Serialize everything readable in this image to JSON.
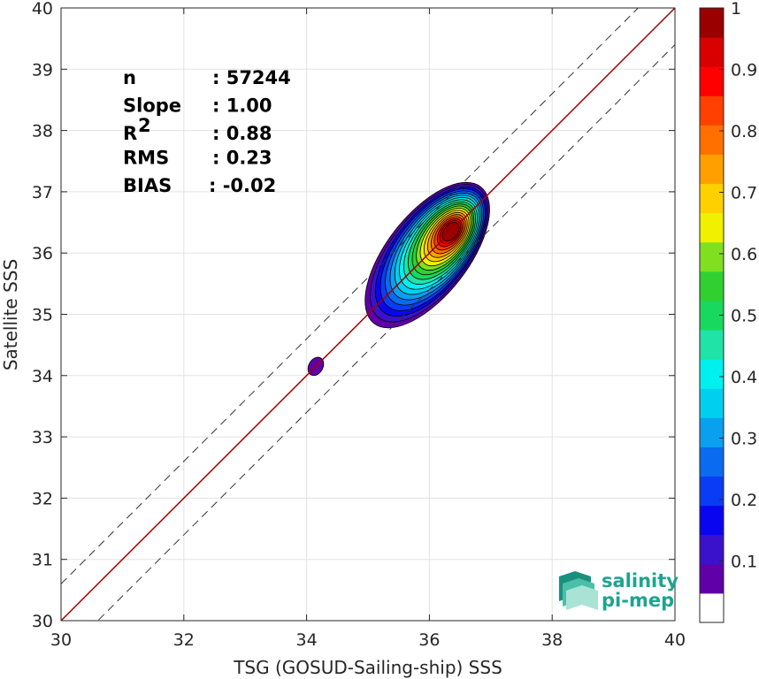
{
  "chart_data": {
    "type": "heatmap",
    "title": "",
    "xlabel": "TSG (GOSUD-Sailing-ship) SSS",
    "ylabel": "Satellite SSS",
    "xlim": [
      30,
      40
    ],
    "ylim": [
      30,
      40
    ],
    "xticks": [
      30,
      32,
      34,
      36,
      38,
      40
    ],
    "yticks": [
      30,
      31,
      32,
      33,
      34,
      35,
      36,
      37,
      38,
      39,
      40
    ],
    "grid": true,
    "reference_line": {
      "slope": 1,
      "intercept": 0,
      "color": "#a30000"
    },
    "dashed_lines_offset": 0.6,
    "stats": [
      {
        "label": "n",
        "value": ": 57244"
      },
      {
        "label": "Slope",
        "value": ": 1.00"
      },
      {
        "label": "R",
        "sup": "2",
        "value": ": 0.88"
      },
      {
        "label": "RMS",
        "value": ": 0.23"
      },
      {
        "label": "BIAS",
        "value": ": -0.02"
      }
    ],
    "density_peaks": [
      {
        "x": 36.35,
        "y": 36.35,
        "max": 1.0
      },
      {
        "x": 34.15,
        "y": 34.15,
        "max": 0.1
      }
    ],
    "colorbar": {
      "min": 0,
      "max": 1,
      "ticks": [
        "0.1",
        "0.2",
        "0.3",
        "0.4",
        "0.5",
        "0.6",
        "0.7",
        "0.8",
        "0.9",
        "1"
      ],
      "colors": [
        "#ffffff",
        "#5f00a8",
        "#3a12cc",
        "#0a05f0",
        "#0a3cf5",
        "#0a6af0",
        "#0aa0f0",
        "#00cfef",
        "#00f0f0",
        "#20e3a8",
        "#18d860",
        "#30d030",
        "#80e020",
        "#f0f000",
        "#ffd000",
        "#ffa000",
        "#ff7000",
        "#ff4000",
        "#ff0000",
        "#d80000",
        "#9a0000"
      ]
    }
  },
  "logo": {
    "line1": "salinity",
    "line2": "pi-mep"
  }
}
